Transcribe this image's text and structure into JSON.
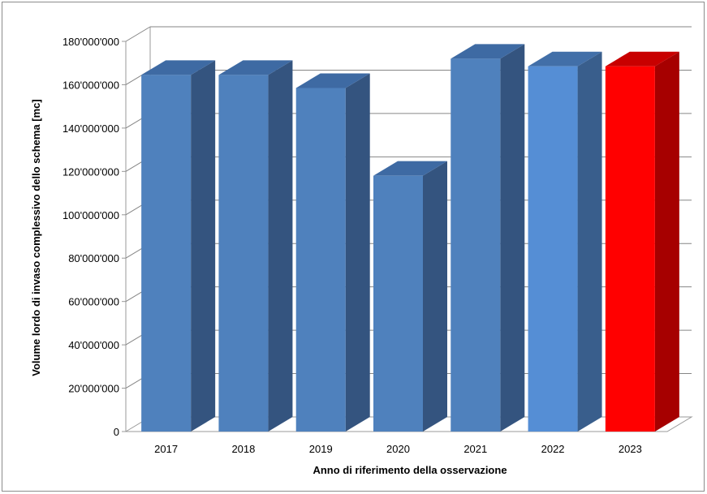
{
  "chart_data": {
    "type": "bar",
    "style": "3d-column",
    "categories": [
      "2017",
      "2018",
      "2019",
      "2020",
      "2021",
      "2022",
      "2023"
    ],
    "values": [
      164500000,
      164500000,
      158500000,
      118000000,
      172000000,
      168500000,
      168500000
    ],
    "xlabel": "Anno di riferimento della osservazione",
    "ylabel": "Volume lordo di invaso complessivo  dello schema [mc]",
    "ylim": [
      0,
      180000000
    ],
    "yticks": [
      0,
      20000000,
      40000000,
      60000000,
      80000000,
      100000000,
      120000000,
      140000000,
      160000000,
      180000000
    ],
    "ytick_labels": [
      "0",
      "20'000'000",
      "40'000'000",
      "60'000'000",
      "80'000'000",
      "100'000'000",
      "120'000'000",
      "140'000'000",
      "160'000'000",
      "180'000'000"
    ],
    "grid": true,
    "legend": "none",
    "colors": {
      "default_front": "#4f81bd",
      "default_side": "#34547f",
      "default_top": "#3e6aa3",
      "2022_front": "#558ed5",
      "2022_side": "#395e8c",
      "2022_top": "#426fa8",
      "highlight_front": "#ff0000",
      "highlight_side": "#a60000",
      "highlight_top": "#c80000",
      "grid": "#868686",
      "wall": "#999999"
    },
    "highlight_category": "2023"
  }
}
